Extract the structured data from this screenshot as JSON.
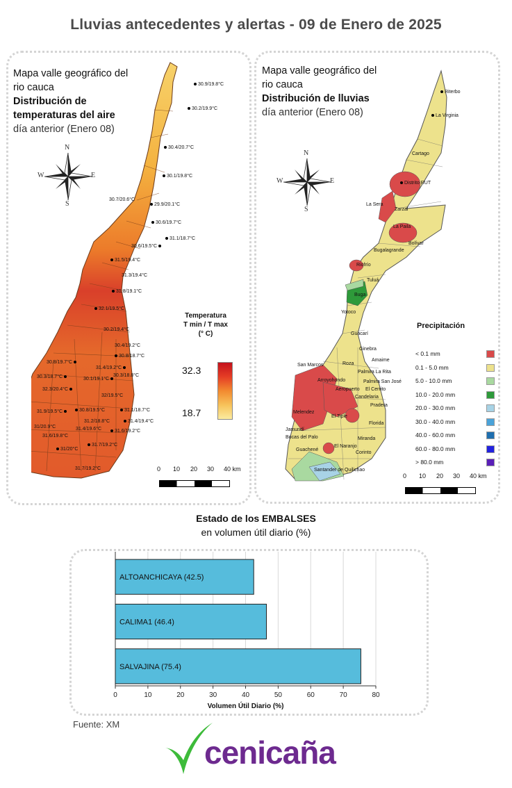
{
  "title": "Lluvias antecedentes y alertas - 09 de Enero de 2025",
  "temp_panel": {
    "line1": "Mapa valle geográfico del",
    "line2": "rio cauca",
    "line3": "Distribución de",
    "line4": "temperaturas del aire",
    "line5": "día anterior (Enero 08)",
    "compass": {
      "n": "N",
      "s": "S",
      "e": "E",
      "w": "W"
    },
    "legend_title1": "Temperatura",
    "legend_title2": "T min / T max",
    "legend_title3": "(° C)",
    "legend_max": "32.3",
    "legend_min": "18.7",
    "scale_labels": [
      "0",
      "10",
      "20",
      "30",
      "40 km"
    ],
    "stations": [
      "30.9/19.8°C",
      "30.2/19.9°C",
      "30.4/20.7°C",
      "30.1/19.8°C",
      "30.7/20.6°C",
      "29.9/20.1°C",
      "30.6/19.7°C",
      "31.1/18.7°C",
      "30.6/19.5°C",
      "31.5/19.4°C",
      "31.3/19.4°C",
      "31.8/19.1°C",
      "32.1/19.5°C",
      "30.2/19.4°C",
      "30.4/19.2°C",
      "30.8/18.7°C",
      "30.8/19.7°C",
      "31.4/19.2°C",
      "30.3/18.7°C",
      "30.1/19.1°C",
      "30.3/18.8°C",
      "32.3/20.4°C",
      "32/19.5°C",
      "30.8/19.5°C",
      "31.9/19.5°C",
      "31.1/18.7°C",
      "31.2/18.8°C",
      "31.4/19.4°C",
      "31/20.9°C",
      "31.4/19.6°C",
      "31.6/19.2°C",
      "31.6/19.8°C",
      "31.7/19.2°C",
      "31/20°C",
      "31.7/19.2°C"
    ]
  },
  "rain_panel": {
    "line1": "Mapa valle geográfico del",
    "line2": "rio cauca",
    "line3": "Distribución de lluvias",
    "line4": "día anterior (Enero 08)",
    "compass": {
      "n": "N",
      "s": "S",
      "e": "E",
      "w": "W"
    },
    "legend_title": "Precipitación",
    "legend": [
      {
        "label": "< 0.1 mm",
        "color": "#d94a4a"
      },
      {
        "label": "0.1 - 5.0 mm",
        "color": "#ede28c"
      },
      {
        "label": "5.0 - 10.0 mm",
        "color": "#a9d9a0"
      },
      {
        "label": "10.0 - 20.0 mm",
        "color": "#2e9a3a"
      },
      {
        "label": "20.0 - 30.0 mm",
        "color": "#a8d3e6"
      },
      {
        "label": "30.0 - 40.0 mm",
        "color": "#4aa3d9"
      },
      {
        "label": "40.0 - 60.0 mm",
        "color": "#1f6fb0"
      },
      {
        "label": "60.0 - 80.0 mm",
        "color": "#2222e0"
      },
      {
        "label": "> 80.0 mm",
        "color": "#5a1fb8"
      }
    ],
    "scale_labels": [
      "0",
      "10",
      "20",
      "30",
      "40 km"
    ],
    "places": [
      "Riterbo",
      "La Virginia",
      "Cartago",
      "Distrito RUT",
      "La Sera",
      "Zarzal",
      "La Paila",
      "Bolívar",
      "Bugalagrande",
      "Riofrío",
      "Tuluá",
      "Buga",
      "Yotoco",
      "Guacarí",
      "Ginebra",
      "San Marcos",
      "Roza",
      "Amaime",
      "Palmira La Rita",
      "Palmira San José",
      "Florida",
      "El Cerrito",
      "Arroyohondo",
      "Aeropuerto",
      "Candelaria",
      "Pradera",
      "Melendez",
      "El Tiple",
      "Jamundí",
      "Bocas del Palo",
      "Miranda",
      "Guachené",
      "El Naranjo",
      "Corinto",
      "Santander de Quilichao"
    ]
  },
  "reservoirs": {
    "title": "Estado de los EMBALSES",
    "subtitle": "en volumen útil diario (%)"
  },
  "chart_data": {
    "type": "bar",
    "orientation": "horizontal",
    "categories": [
      "ALTOANCHICAYA",
      "CALIMA1",
      "SALVAJINA"
    ],
    "bar_labels": [
      "ALTOANCHICAYA (42.5)",
      "CALIMA1 (46.4)",
      "SALVAJINA (75.4)"
    ],
    "values": [
      42.5,
      46.4,
      75.4
    ],
    "xlabel": "Volumen Útil Diario (%)",
    "xlim": [
      0,
      80
    ],
    "xticks": [
      "0",
      "10",
      "20",
      "30",
      "40",
      "50",
      "60",
      "70",
      "80"
    ],
    "bar_color": "#56bcdc",
    "grid": true
  },
  "source": "Fuente: XM",
  "logo_text": "cenicaña",
  "colors": {
    "title": "#4a4a4a",
    "logo_purple": "#6d2a8f",
    "logo_green": "#3dbb3a"
  }
}
